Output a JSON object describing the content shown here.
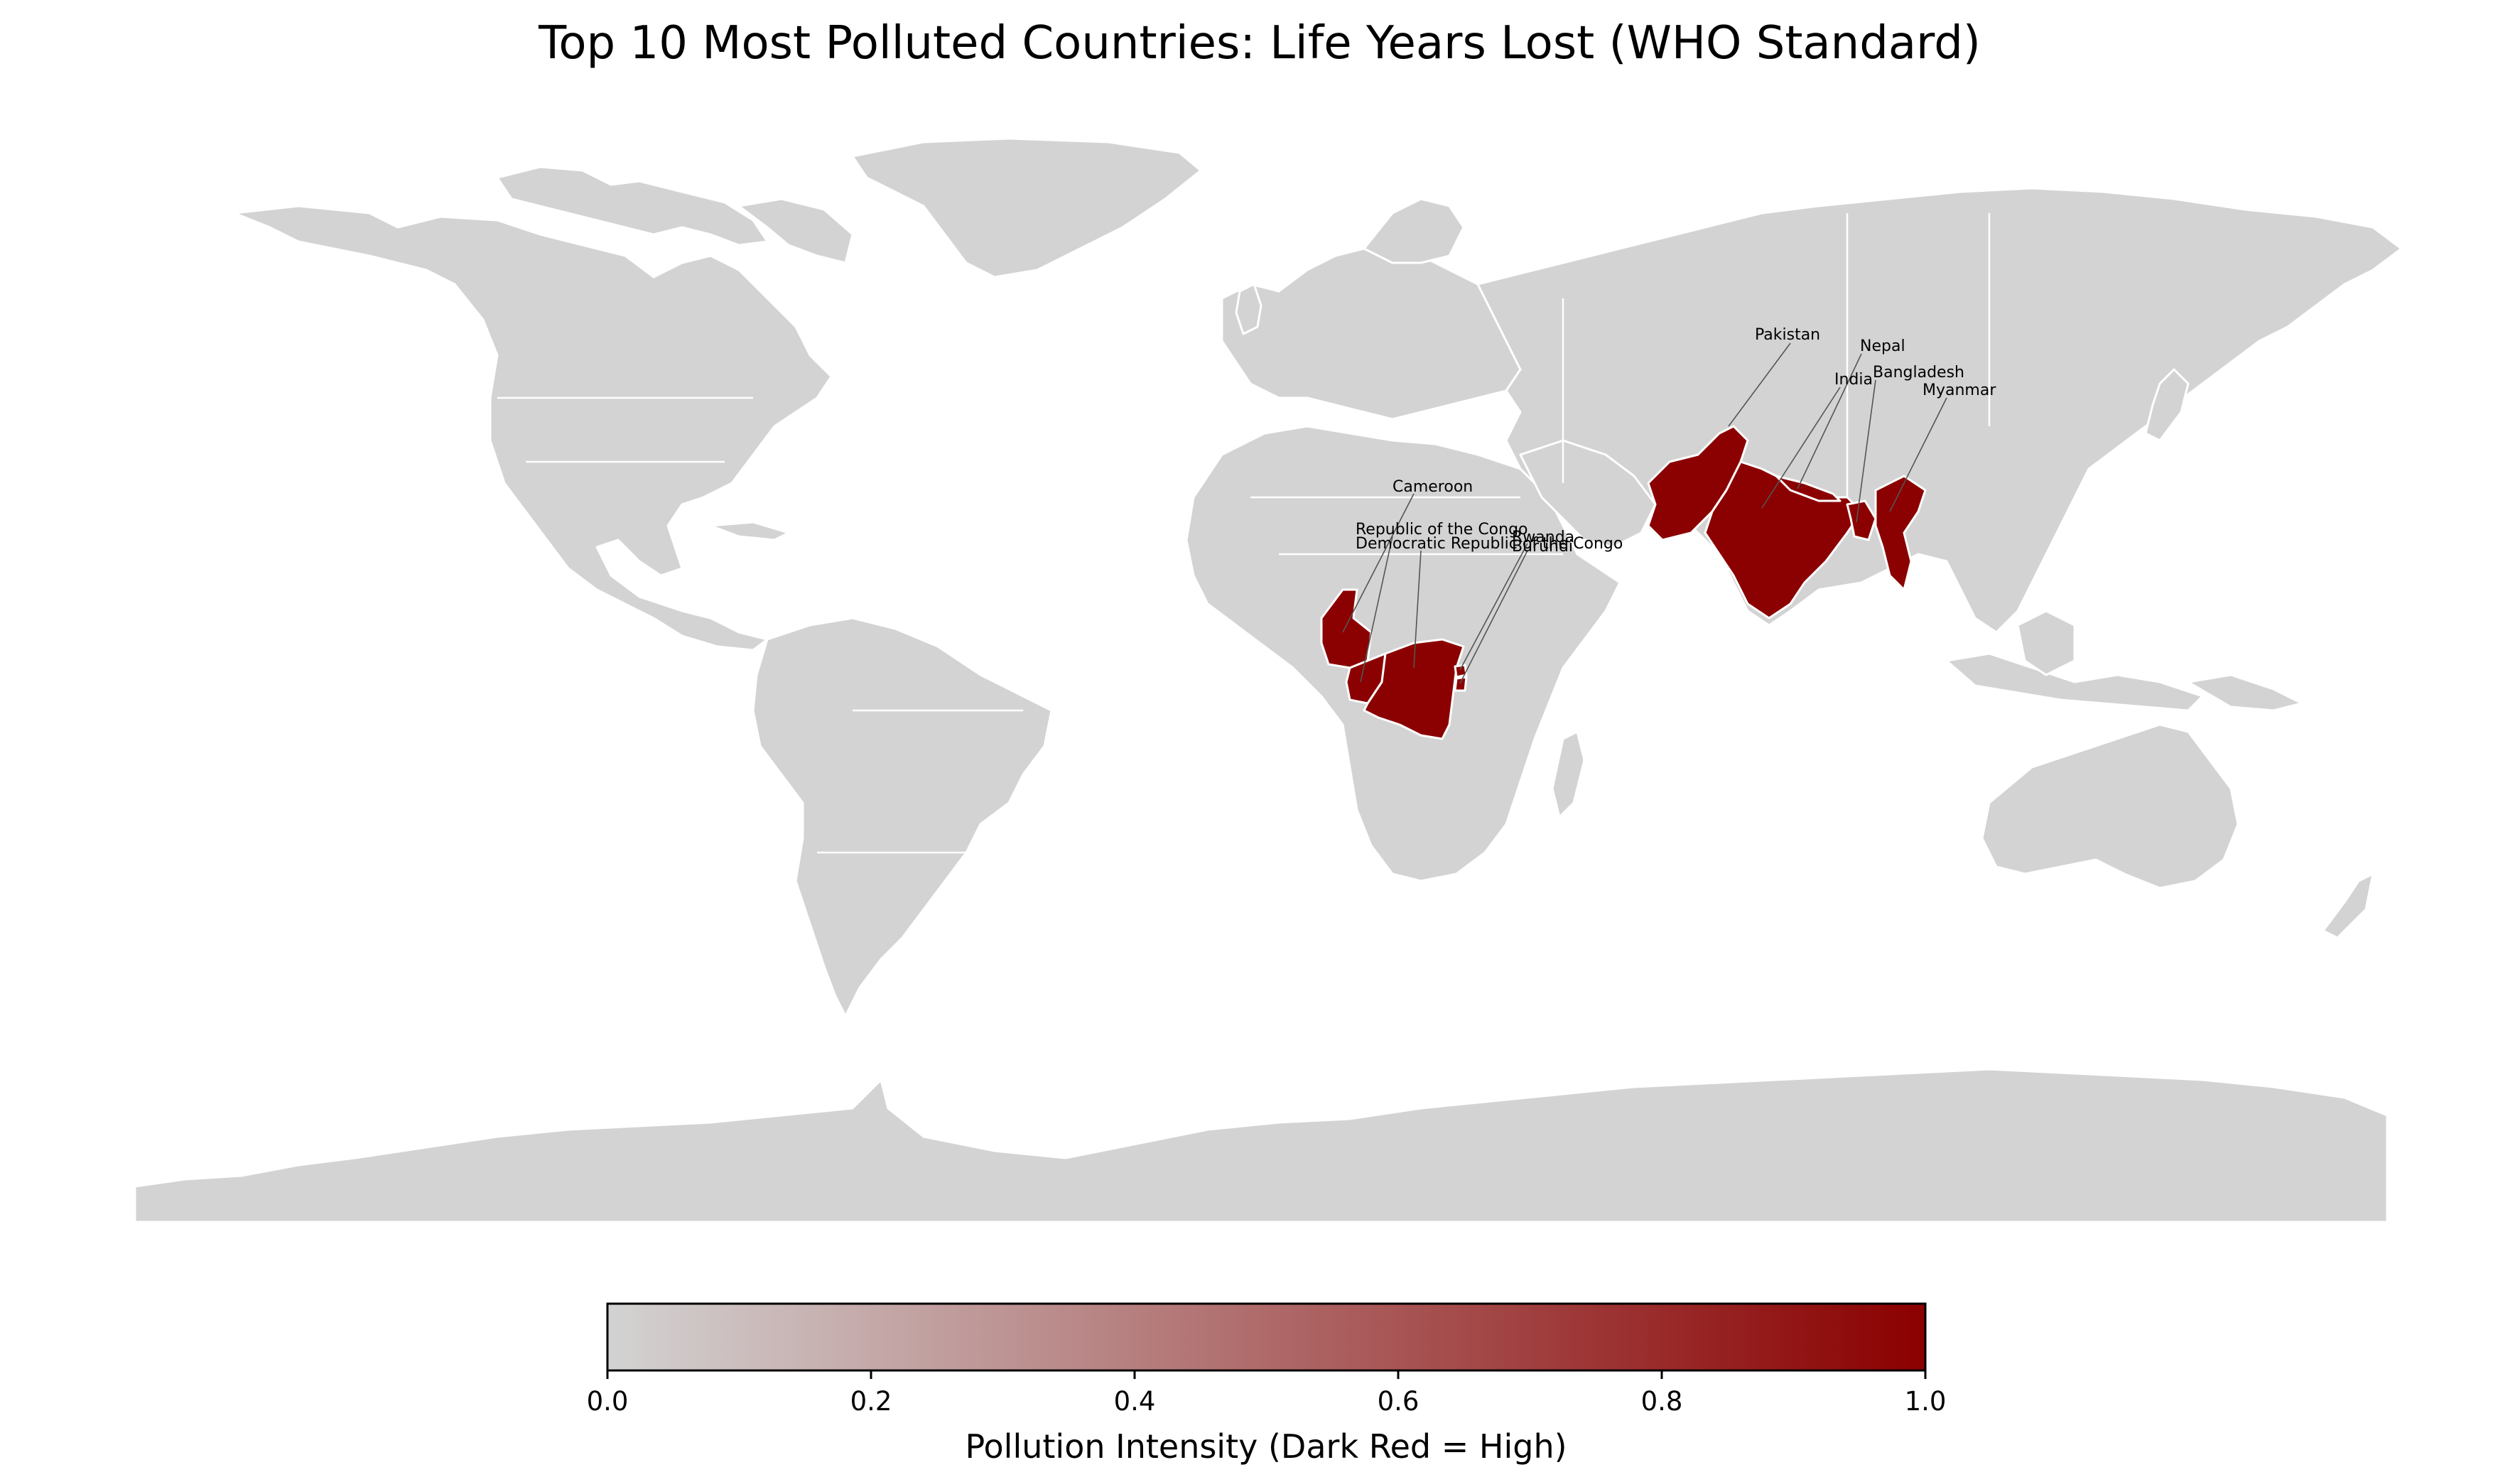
{
  "title": "Top 10 Most Polluted Countries: Life Years Lost (WHO Standard)",
  "colors": {
    "land": "#d3d3d3",
    "highlight": "#8b0000",
    "border": "#ffffff",
    "cmap_low": "#d3d3d3",
    "cmap_high": "#8b0000"
  },
  "map": {
    "highlighted_countries": [
      {
        "id": "pakistan",
        "label": "Pakistan",
        "intensity": 1.0
      },
      {
        "id": "nepal",
        "label": "Nepal",
        "intensity": 1.0
      },
      {
        "id": "india",
        "label": "India",
        "intensity": 1.0
      },
      {
        "id": "bangladesh",
        "label": "Bangladesh",
        "intensity": 1.0
      },
      {
        "id": "myanmar",
        "label": "Myanmar",
        "intensity": 1.0
      },
      {
        "id": "cameroon",
        "label": "Cameroon",
        "intensity": 1.0
      },
      {
        "id": "republic-of-the-congo",
        "label": "Republic of the Congo",
        "intensity": 1.0
      },
      {
        "id": "democratic-republic-of-the-congo",
        "label": "Democratic Republic of the Congo",
        "intensity": 1.0
      },
      {
        "id": "rwanda",
        "label": "Rwanda",
        "intensity": 1.0
      },
      {
        "id": "burundi",
        "label": "Burundi",
        "intensity": 1.0
      }
    ]
  },
  "colorbar": {
    "label": "Pollution Intensity (Dark Red = High)",
    "ticks": [
      "0.0",
      "0.2",
      "0.4",
      "0.6",
      "0.8",
      "1.0"
    ],
    "range": [
      0.0,
      1.0
    ]
  }
}
